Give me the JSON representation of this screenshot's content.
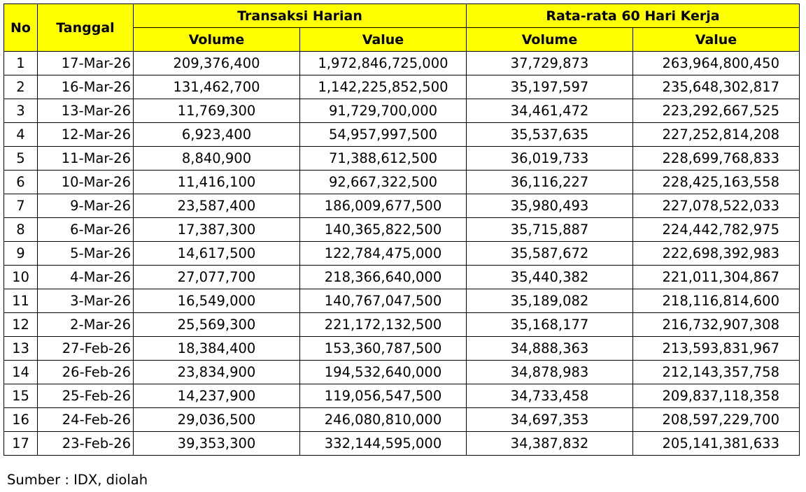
{
  "headers": {
    "no": "No",
    "tanggal": "Tanggal",
    "group1": "Transaksi Harian",
    "group2": "Rata-rata 60 Hari Kerja",
    "volume": "Volume",
    "value": "Value"
  },
  "rows": [
    [
      "1",
      "17-Mar-26",
      "209,376,400",
      "1,972,846,725,000",
      "37,729,873",
      "263,964,800,450"
    ],
    [
      "2",
      "16-Mar-26",
      "131,462,700",
      "1,142,225,852,500",
      "35,197,597",
      "235,648,302,817"
    ],
    [
      "3",
      "13-Mar-26",
      "11,769,300",
      "91,729,700,000",
      "34,461,472",
      "223,292,667,525"
    ],
    [
      "4",
      "12-Mar-26",
      "6,923,400",
      "54,957,997,500",
      "35,537,635",
      "227,252,814,208"
    ],
    [
      "5",
      "11-Mar-26",
      "8,840,900",
      "71,388,612,500",
      "36,019,733",
      "228,699,768,833"
    ],
    [
      "6",
      "10-Mar-26",
      "11,416,100",
      "92,667,322,500",
      "36,116,227",
      "228,425,163,558"
    ],
    [
      "7",
      "9-Mar-26",
      "23,587,400",
      "186,009,677,500",
      "35,980,493",
      "227,078,522,033"
    ],
    [
      "8",
      "6-Mar-26",
      "17,387,300",
      "140,365,822,500",
      "35,715,887",
      "224,442,782,975"
    ],
    [
      "9",
      "5-Mar-26",
      "14,617,500",
      "122,784,475,000",
      "35,587,672",
      "222,698,392,983"
    ],
    [
      "10",
      "4-Mar-26",
      "27,077,700",
      "218,366,640,000",
      "35,440,382",
      "221,011,304,867"
    ],
    [
      "11",
      "3-Mar-26",
      "16,549,000",
      "140,767,047,500",
      "35,189,082",
      "218,116,814,600"
    ],
    [
      "12",
      "2-Mar-26",
      "25,569,300",
      "221,172,132,500",
      "35,168,177",
      "216,732,907,308"
    ],
    [
      "13",
      "27-Feb-26",
      "18,384,400",
      "153,360,787,500",
      "34,888,363",
      "213,593,831,967"
    ],
    [
      "14",
      "26-Feb-26",
      "23,834,900",
      "194,532,640,000",
      "34,878,983",
      "212,143,357,758"
    ],
    [
      "15",
      "25-Feb-26",
      "14,237,900",
      "119,056,547,500",
      "34,733,458",
      "209,837,118,358"
    ],
    [
      "16",
      "24-Feb-26",
      "29,036,500",
      "246,080,810,000",
      "34,697,353",
      "208,597,229,700"
    ],
    [
      "17",
      "23-Feb-26",
      "39,353,300",
      "332,144,595,000",
      "34,387,832",
      "205,141,381,633"
    ]
  ],
  "source": "Sumber : IDX, diolah",
  "colors": {
    "header_bg": "#ffff00",
    "border": "#000000"
  }
}
